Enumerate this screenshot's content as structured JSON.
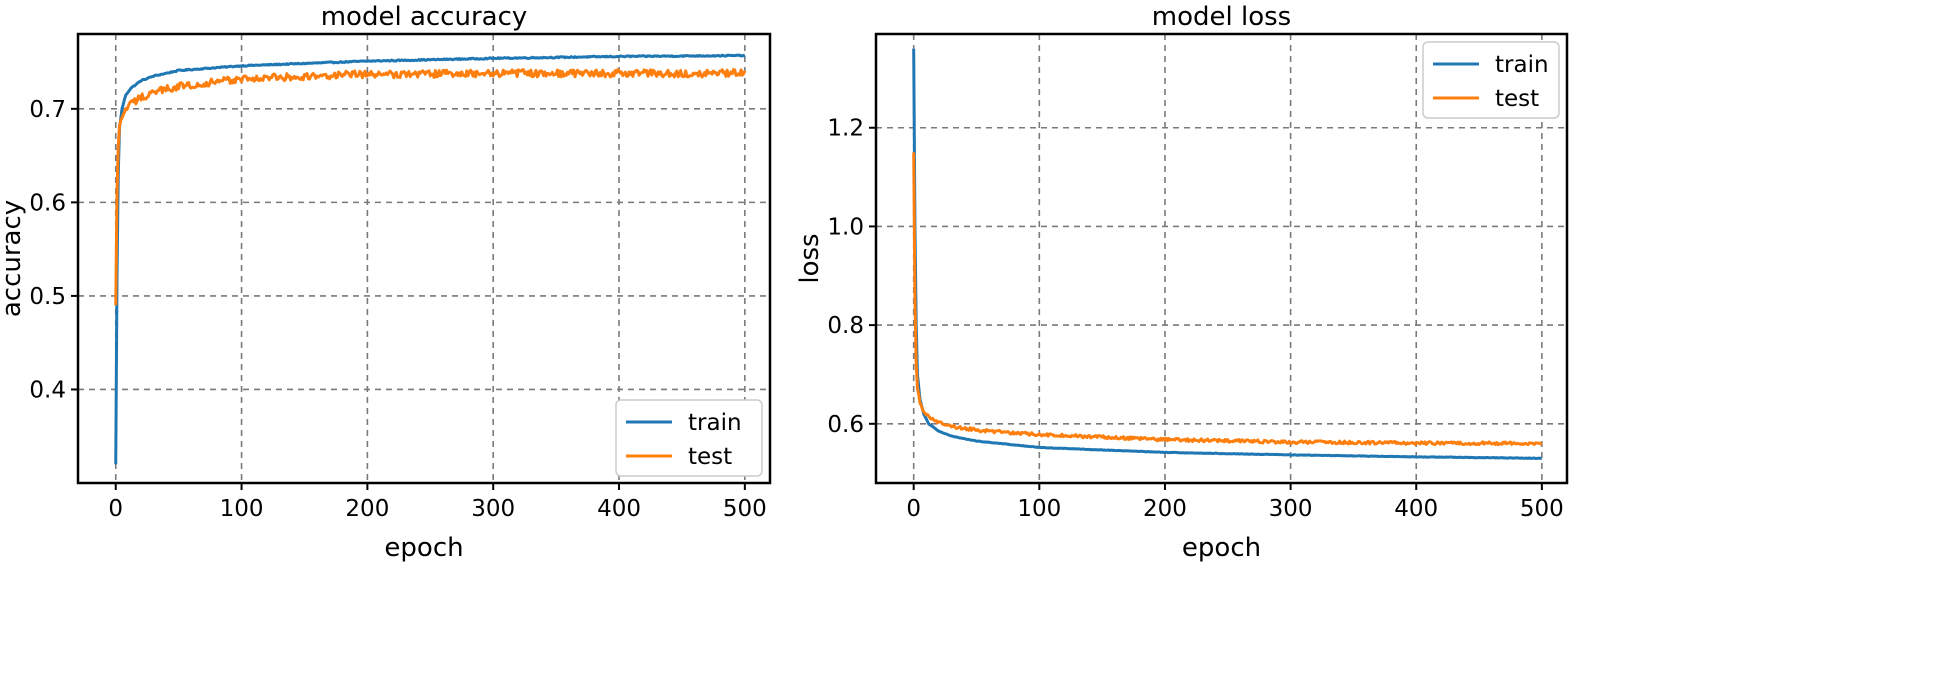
{
  "chart_data": [
    {
      "type": "line",
      "title": "model accuracy",
      "xlabel": "epoch",
      "ylabel": "accuracy",
      "xlim": [
        -30,
        520
      ],
      "ylim": [
        0.3,
        0.78
      ],
      "xticks": [
        0,
        100,
        200,
        300,
        400,
        500
      ],
      "yticks": [
        0.4,
        0.5,
        0.6,
        0.7
      ],
      "ytick_labels": [
        "0.4",
        "0.5",
        "0.6",
        "0.7"
      ],
      "grid": true,
      "legend_position": "lower-right",
      "series": [
        {
          "name": "train",
          "color": "#1f77b4",
          "noise": 0.0006,
          "x": [
            0,
            1,
            2,
            3,
            5,
            8,
            12,
            20,
            30,
            50,
            100,
            200,
            300,
            400,
            500
          ],
          "y": [
            0.32,
            0.52,
            0.63,
            0.68,
            0.7,
            0.715,
            0.722,
            0.73,
            0.735,
            0.741,
            0.746,
            0.751,
            0.754,
            0.756,
            0.757
          ]
        },
        {
          "name": "test",
          "color": "#ff7f0e",
          "noise": 0.004,
          "x": [
            0,
            1,
            2,
            3,
            5,
            8,
            12,
            20,
            30,
            50,
            100,
            200,
            300,
            400,
            500
          ],
          "y": [
            0.49,
            0.61,
            0.66,
            0.68,
            0.69,
            0.7,
            0.705,
            0.712,
            0.718,
            0.724,
            0.732,
            0.737,
            0.738,
            0.738,
            0.738
          ]
        }
      ]
    },
    {
      "type": "line",
      "title": "model loss",
      "xlabel": "epoch",
      "ylabel": "loss",
      "xlim": [
        -30,
        520
      ],
      "ylim": [
        0.48,
        1.39
      ],
      "xticks": [
        0,
        100,
        200,
        300,
        400,
        500
      ],
      "yticks": [
        0.6,
        0.8,
        1.0,
        1.2
      ],
      "ytick_labels": [
        "0.6",
        "0.8",
        "1.0",
        "1.2"
      ],
      "grid": true,
      "legend_position": "upper-right",
      "series": [
        {
          "name": "train",
          "color": "#1f77b4",
          "noise": 0.0005,
          "x": [
            0,
            1,
            2,
            3,
            5,
            8,
            12,
            20,
            30,
            50,
            100,
            200,
            300,
            400,
            500
          ],
          "y": [
            1.36,
            1.0,
            0.8,
            0.7,
            0.65,
            0.62,
            0.6,
            0.585,
            0.575,
            0.565,
            0.552,
            0.542,
            0.537,
            0.533,
            0.53
          ]
        },
        {
          "name": "test",
          "color": "#ff7f0e",
          "noise": 0.003,
          "x": [
            0,
            1,
            2,
            3,
            5,
            8,
            12,
            20,
            30,
            50,
            100,
            200,
            300,
            400,
            500
          ],
          "y": [
            1.15,
            0.85,
            0.72,
            0.67,
            0.645,
            0.625,
            0.615,
            0.603,
            0.595,
            0.587,
            0.578,
            0.568,
            0.563,
            0.561,
            0.56
          ]
        }
      ]
    }
  ]
}
